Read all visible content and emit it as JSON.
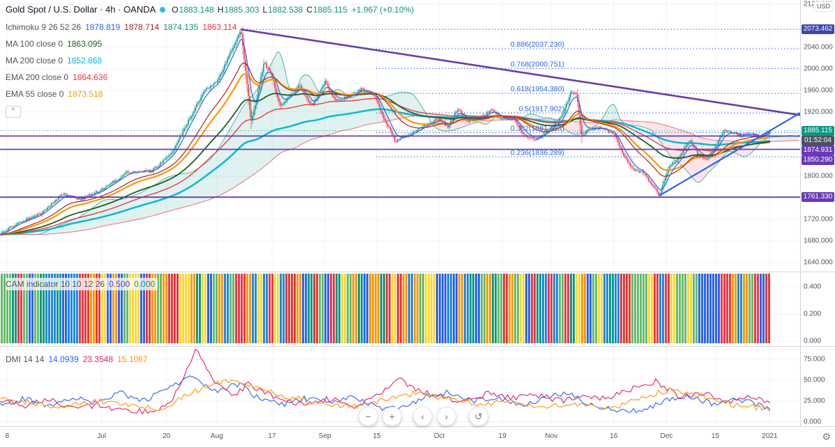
{
  "legend": {
    "title": "Gold Spot / U.S. Dollar · 4h · OANDA",
    "ohlc": [
      {
        "k": "O",
        "v": "1883.148"
      },
      {
        "k": "H",
        "v": "1885.303"
      },
      {
        "k": "L",
        "v": "1882.538"
      },
      {
        "k": "C",
        "v": "1885.115"
      }
    ],
    "change": "+1.967 (+0.10%)",
    "ichimoku": {
      "name": "Ichimoku 9 26 52 26",
      "values": [
        {
          "v": "1878.819",
          "color": "#2962ff"
        },
        {
          "v": "1878.714",
          "color": "#b71c1c"
        },
        {
          "v": "1874.135",
          "color": "#089981"
        },
        {
          "v": "1863.114",
          "color": "#f23645"
        }
      ]
    },
    "rows": [
      {
        "name": "MA 100 close 0",
        "value": "1863.095",
        "color": "#1b5e20"
      },
      {
        "name": "MA 200 close 0",
        "value": "1852.868",
        "color": "#00bcd4"
      },
      {
        "name": "EMA 200 close 0",
        "value": "1864.636",
        "color": "#f23645"
      },
      {
        "name": "EMA 55 close 0",
        "value": "1873.518",
        "color": "#ff9800"
      }
    ],
    "collapse_glyph": "^"
  },
  "price_scale": {
    "currency": "USD"
  },
  "time_axis": {
    "settings_glyph": "⚙"
  },
  "toolbar": {
    "buttons": [
      {
        "glyph": "−"
      },
      {
        "glyph": "+"
      },
      {
        "glyph": "‹"
      },
      {
        "glyph": "›"
      },
      {
        "glyph": "↺"
      }
    ]
  },
  "chart_data": {
    "type": "candlestick",
    "symbol": "Gold Spot / U.S. Dollar",
    "interval": "4h",
    "exchange": "OANDA",
    "ohlc": {
      "open": 1883.148,
      "high": 1885.303,
      "low": 1882.538,
      "close": 1885.115,
      "change": 1.967,
      "change_pct": 0.1
    },
    "countdown": "01:52:04",
    "y_range": [
      1623,
      2128
    ],
    "last_x": 0.963,
    "colors": {
      "up": "#089981",
      "down": "#f23645",
      "grid": "#f0f3fa",
      "fib": "#2962ff",
      "hline": "#673ab7",
      "ma100": "#1b5e20",
      "ma200": "#00bcd4",
      "ema200": "#f23645",
      "ema55": "#ff9800",
      "tenkan": "#2962ff",
      "kijun": "#b71c1c",
      "spanA": "#089981",
      "spanB": "#f23645"
    },
    "price_ticks": [
      {
        "v": 2120,
        "label": "2120.000"
      },
      {
        "v": 2040,
        "label": "2040.000"
      },
      {
        "v": 2000,
        "label": "2000.000"
      },
      {
        "v": 1960,
        "label": "1960.000"
      },
      {
        "v": 1920,
        "label": "1920.000"
      },
      {
        "v": 1800,
        "label": "1800.000"
      },
      {
        "v": 1720,
        "label": "1720.000"
      },
      {
        "v": 1680,
        "label": "1680.000"
      },
      {
        "v": 1640,
        "label": "1640.000"
      }
    ],
    "x_axis": {
      "labels": [
        {
          "t": "8",
          "f": 0.009
        },
        {
          "t": "Jul",
          "f": 0.127
        },
        {
          "t": "20",
          "f": 0.208
        },
        {
          "t": "Aug",
          "f": 0.271
        },
        {
          "t": "17",
          "f": 0.34
        },
        {
          "t": "Sep",
          "f": 0.406
        },
        {
          "t": "15",
          "f": 0.471
        },
        {
          "t": "Oct",
          "f": 0.549
        },
        {
          "t": "19",
          "f": 0.628
        },
        {
          "t": "Nov",
          "f": 0.689
        },
        {
          "t": "16",
          "f": 0.767
        },
        {
          "t": "Dec",
          "f": 0.833
        },
        {
          "t": "15",
          "f": 0.894
        },
        {
          "t": "2021",
          "f": 0.962
        }
      ]
    },
    "close_keypoints": [
      [
        0.0,
        1692
      ],
      [
        0.02,
        1712
      ],
      [
        0.05,
        1730
      ],
      [
        0.08,
        1768
      ],
      [
        0.1,
        1757
      ],
      [
        0.127,
        1775
      ],
      [
        0.16,
        1808
      ],
      [
        0.19,
        1810
      ],
      [
        0.215,
        1843
      ],
      [
        0.235,
        1902
      ],
      [
        0.255,
        1958
      ],
      [
        0.272,
        1978
      ],
      [
        0.288,
        2030
      ],
      [
        0.301,
        2073
      ],
      [
        0.307,
        1992
      ],
      [
        0.314,
        1902
      ],
      [
        0.321,
        1946
      ],
      [
        0.33,
        2012
      ],
      [
        0.34,
        1986
      ],
      [
        0.35,
        1930
      ],
      [
        0.362,
        1950
      ],
      [
        0.375,
        1968
      ],
      [
        0.39,
        1930
      ],
      [
        0.406,
        1976
      ],
      [
        0.42,
        1940
      ],
      [
        0.435,
        1948
      ],
      [
        0.452,
        1962
      ],
      [
        0.468,
        1952
      ],
      [
        0.48,
        1908
      ],
      [
        0.494,
        1866
      ],
      [
        0.51,
        1876
      ],
      [
        0.525,
        1890
      ],
      [
        0.54,
        1902
      ],
      [
        0.549,
        1906
      ],
      [
        0.56,
        1892
      ],
      [
        0.572,
        1926
      ],
      [
        0.585,
        1902
      ],
      [
        0.6,
        1908
      ],
      [
        0.615,
        1924
      ],
      [
        0.628,
        1906
      ],
      [
        0.642,
        1908
      ],
      [
        0.655,
        1877
      ],
      [
        0.67,
        1867
      ],
      [
        0.689,
        1892
      ],
      [
        0.702,
        1910
      ],
      [
        0.714,
        1958
      ],
      [
        0.721,
        1950
      ],
      [
        0.727,
        1875
      ],
      [
        0.737,
        1888
      ],
      [
        0.752,
        1890
      ],
      [
        0.767,
        1880
      ],
      [
        0.78,
        1837
      ],
      [
        0.792,
        1812
      ],
      [
        0.803,
        1808
      ],
      [
        0.813,
        1788
      ],
      [
        0.824,
        1765
      ],
      [
        0.836,
        1816
      ],
      [
        0.85,
        1838
      ],
      [
        0.862,
        1868
      ],
      [
        0.872,
        1842
      ],
      [
        0.883,
        1832
      ],
      [
        0.894,
        1856
      ],
      [
        0.905,
        1884
      ],
      [
        0.916,
        1882
      ],
      [
        0.926,
        1876
      ],
      [
        0.94,
        1880
      ],
      [
        0.95,
        1872
      ],
      [
        0.958,
        1880
      ],
      [
        0.963,
        1885
      ]
    ],
    "fib": {
      "x_start": 0.47,
      "label_x": 0.705,
      "levels": [
        {
          "label": "",
          "price": 2073.462,
          "x_start": 0.301
        },
        {
          "label": "0.886(2037.230)",
          "price": 2037.23
        },
        {
          "label": "0.768(2000.751)",
          "price": 2000.751
        },
        {
          "label": "0.618(1954.380)",
          "price": 1954.38
        },
        {
          "label": "0.5(1917.902)",
          "price": 1917.902
        },
        {
          "label": "0.382(1881.423)",
          "price": 1881.423
        },
        {
          "label": "0.236(1836.289)",
          "price": 1836.289
        }
      ]
    },
    "horizontal_lines": [
      {
        "price": 1874.931
      },
      {
        "price": 1850.29
      },
      {
        "price": 1761.33
      }
    ],
    "trendlines": [
      {
        "x1": 0.301,
        "p1": 2073.462,
        "x2": 1.0,
        "p2": 1914,
        "color": "#673ab7",
        "width": 2.6
      },
      {
        "x1": 0.824,
        "p1": 1764.0,
        "x2": 1.0,
        "p2": 1918,
        "color": "#2962ff",
        "width": 2.2
      }
    ],
    "badges": [
      {
        "text": "2073.462",
        "price": 2073.462,
        "bg": "#3949ab"
      },
      {
        "text": "1885.115",
        "price": 1885.115,
        "bg": "#089981"
      },
      {
        "text": "01:52:04",
        "price": 1885.115,
        "bg": "#4c525e"
      },
      {
        "text": "1874.931",
        "price": 1874.931,
        "bg": "#673ab7"
      },
      {
        "text": "1850.290",
        "price": 1850.29,
        "bg": "#673ab7"
      },
      {
        "text": "1761.330",
        "price": 1761.33,
        "bg": "#673ab7"
      }
    ],
    "cam": {
      "name": "CAM indicator 10 10 12 26",
      "values": [
        {
          "v": "0.500",
          "color": "#673ab7"
        },
        {
          "v": "0.000",
          "color": "#089981"
        }
      ],
      "ticks": [
        {
          "v": 0.4,
          "label": "0.400"
        },
        {
          "v": 0.2,
          "label": "0.200"
        },
        {
          "v": 0.0,
          "label": "0.000"
        }
      ],
      "palette": [
        "#089981",
        "#f23645",
        "#2962ff",
        "#fdd835",
        "#ff9800",
        "#66bb6a",
        "#e53935",
        "#1e88e5"
      ]
    },
    "dmi": {
      "name": "DMI 14 14",
      "values": [
        {
          "v": "14.0939",
          "color": "#2962ff"
        },
        {
          "v": "23.3548",
          "color": "#e91e63"
        },
        {
          "v": "15.1067",
          "color": "#ff9800"
        }
      ],
      "ticks": [
        {
          "v": 75,
          "label": "75.000"
        },
        {
          "v": 50,
          "label": "50.000"
        },
        {
          "v": 25,
          "label": "25.000"
        },
        {
          "v": 0,
          "label": "0.000"
        }
      ],
      "series": {
        "plus_di": [
          [
            0,
            20
          ],
          [
            0.03,
            28
          ],
          [
            0.06,
            18
          ],
          [
            0.09,
            30
          ],
          [
            0.12,
            22
          ],
          [
            0.15,
            35
          ],
          [
            0.18,
            25
          ],
          [
            0.21,
            40
          ],
          [
            0.24,
            55
          ],
          [
            0.27,
            38
          ],
          [
            0.3,
            45
          ],
          [
            0.32,
            30
          ],
          [
            0.35,
            20
          ],
          [
            0.38,
            28
          ],
          [
            0.41,
            24
          ],
          [
            0.44,
            30
          ],
          [
            0.47,
            18
          ],
          [
            0.5,
            15
          ],
          [
            0.53,
            30
          ],
          [
            0.56,
            35
          ],
          [
            0.59,
            25
          ],
          [
            0.62,
            30
          ],
          [
            0.65,
            20
          ],
          [
            0.68,
            28
          ],
          [
            0.71,
            35
          ],
          [
            0.74,
            20
          ],
          [
            0.77,
            15
          ],
          [
            0.8,
            12
          ],
          [
            0.83,
            25
          ],
          [
            0.86,
            30
          ],
          [
            0.89,
            22
          ],
          [
            0.92,
            28
          ],
          [
            0.95,
            20
          ],
          [
            0.963,
            14
          ]
        ],
        "minus_di": [
          [
            0,
            25
          ],
          [
            0.03,
            18
          ],
          [
            0.06,
            28
          ],
          [
            0.09,
            15
          ],
          [
            0.12,
            20
          ],
          [
            0.15,
            15
          ],
          [
            0.18,
            12
          ],
          [
            0.21,
            20
          ],
          [
            0.225,
            45
          ],
          [
            0.245,
            88
          ],
          [
            0.26,
            60
          ],
          [
            0.275,
            42
          ],
          [
            0.29,
            30
          ],
          [
            0.31,
            45
          ],
          [
            0.33,
            35
          ],
          [
            0.36,
            25
          ],
          [
            0.38,
            20
          ],
          [
            0.41,
            28
          ],
          [
            0.44,
            18
          ],
          [
            0.47,
            30
          ],
          [
            0.5,
            52
          ],
          [
            0.52,
            38
          ],
          [
            0.55,
            30
          ],
          [
            0.58,
            22
          ],
          [
            0.61,
            35
          ],
          [
            0.64,
            28
          ],
          [
            0.67,
            32
          ],
          [
            0.7,
            25
          ],
          [
            0.73,
            30
          ],
          [
            0.76,
            28
          ],
          [
            0.79,
            40
          ],
          [
            0.82,
            48
          ],
          [
            0.85,
            30
          ],
          [
            0.88,
            35
          ],
          [
            0.91,
            25
          ],
          [
            0.94,
            30
          ],
          [
            0.963,
            23
          ]
        ],
        "adx": [
          [
            0,
            30
          ],
          [
            0.04,
            22
          ],
          [
            0.08,
            18
          ],
          [
            0.12,
            25
          ],
          [
            0.16,
            20
          ],
          [
            0.2,
            15
          ],
          [
            0.24,
            35
          ],
          [
            0.28,
            50
          ],
          [
            0.32,
            40
          ],
          [
            0.36,
            30
          ],
          [
            0.4,
            22
          ],
          [
            0.44,
            18
          ],
          [
            0.48,
            25
          ],
          [
            0.52,
            35
          ],
          [
            0.56,
            28
          ],
          [
            0.6,
            20
          ],
          [
            0.64,
            25
          ],
          [
            0.68,
            18
          ],
          [
            0.72,
            22
          ],
          [
            0.76,
            15
          ],
          [
            0.8,
            28
          ],
          [
            0.84,
            40
          ],
          [
            0.88,
            30
          ],
          [
            0.92,
            20
          ],
          [
            0.963,
            15
          ]
        ]
      }
    }
  }
}
